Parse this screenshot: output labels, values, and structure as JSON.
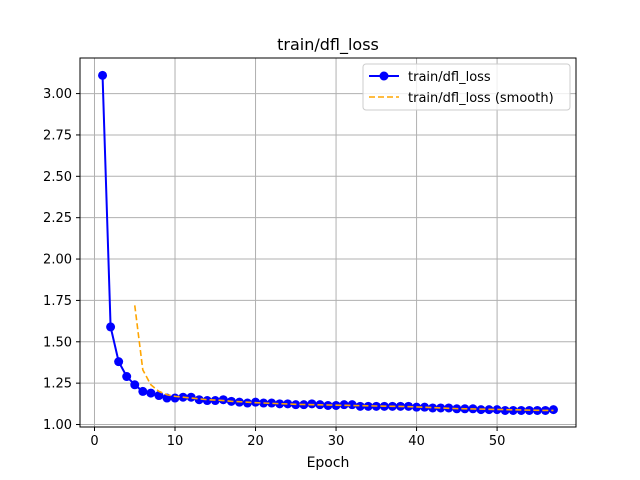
{
  "chart_data": {
    "type": "line",
    "title": "train/dfl_loss",
    "xlabel": "Epoch",
    "ylabel": "",
    "xlim": [
      -1.8,
      59.8
    ],
    "ylim": [
      0.985,
      3.215
    ],
    "x_ticks": [
      0,
      10,
      20,
      30,
      40,
      50
    ],
    "y_ticks": [
      1.0,
      1.25,
      1.5,
      1.75,
      2.0,
      2.25,
      2.5,
      2.75,
      3.0
    ],
    "y_tick_labels": [
      "1.00",
      "1.25",
      "1.50",
      "1.75",
      "2.00",
      "2.25",
      "2.50",
      "2.75",
      "3.00"
    ],
    "grid": true,
    "legend_position": "top-right",
    "series": [
      {
        "name": "train/dfl_loss",
        "color": "#0000ff",
        "style": "solid-with-markers",
        "x": [
          1,
          2,
          3,
          4,
          5,
          6,
          7,
          8,
          9,
          10,
          11,
          12,
          13,
          14,
          15,
          16,
          17,
          18,
          19,
          20,
          21,
          22,
          23,
          24,
          25,
          26,
          27,
          28,
          29,
          30,
          31,
          32,
          33,
          34,
          35,
          36,
          37,
          38,
          39,
          40,
          41,
          42,
          43,
          44,
          45,
          46,
          47,
          48,
          49,
          50,
          51,
          52,
          53,
          54,
          55,
          56,
          57
        ],
        "values": [
          3.11,
          1.59,
          1.38,
          1.29,
          1.24,
          1.2,
          1.19,
          1.175,
          1.16,
          1.16,
          1.165,
          1.165,
          1.15,
          1.145,
          1.145,
          1.15,
          1.14,
          1.135,
          1.13,
          1.135,
          1.13,
          1.13,
          1.125,
          1.125,
          1.12,
          1.12,
          1.125,
          1.12,
          1.115,
          1.115,
          1.12,
          1.12,
          1.11,
          1.11,
          1.11,
          1.11,
          1.11,
          1.11,
          1.11,
          1.105,
          1.105,
          1.1,
          1.1,
          1.1,
          1.095,
          1.095,
          1.095,
          1.09,
          1.09,
          1.09,
          1.085,
          1.085,
          1.085,
          1.085,
          1.085,
          1.085,
          1.09
        ]
      },
      {
        "name": "train/dfl_loss (smooth)",
        "color": "#ffa500",
        "style": "dashed",
        "x": [
          5,
          6,
          7,
          8,
          9,
          10,
          11,
          12,
          13,
          14,
          15,
          16,
          17,
          18,
          19,
          20,
          21,
          22,
          23,
          24,
          25,
          26,
          27,
          28,
          29,
          30,
          31,
          32,
          33,
          34,
          35,
          36,
          37,
          38,
          39,
          40,
          41,
          42,
          43,
          44,
          45,
          46,
          47,
          48,
          49,
          50,
          51,
          52,
          53,
          54,
          55,
          56,
          57
        ],
        "values": [
          1.72,
          1.33,
          1.24,
          1.2,
          1.18,
          1.17,
          1.165,
          1.16,
          1.155,
          1.15,
          1.148,
          1.145,
          1.14,
          1.138,
          1.135,
          1.132,
          1.13,
          1.128,
          1.126,
          1.124,
          1.122,
          1.121,
          1.12,
          1.119,
          1.118,
          1.117,
          1.116,
          1.115,
          1.114,
          1.113,
          1.112,
          1.111,
          1.11,
          1.109,
          1.108,
          1.106,
          1.104,
          1.102,
          1.1,
          1.098,
          1.096,
          1.095,
          1.094,
          1.093,
          1.092,
          1.091,
          1.09,
          1.089,
          1.088,
          1.087,
          1.086,
          1.085,
          1.085
        ]
      }
    ]
  }
}
